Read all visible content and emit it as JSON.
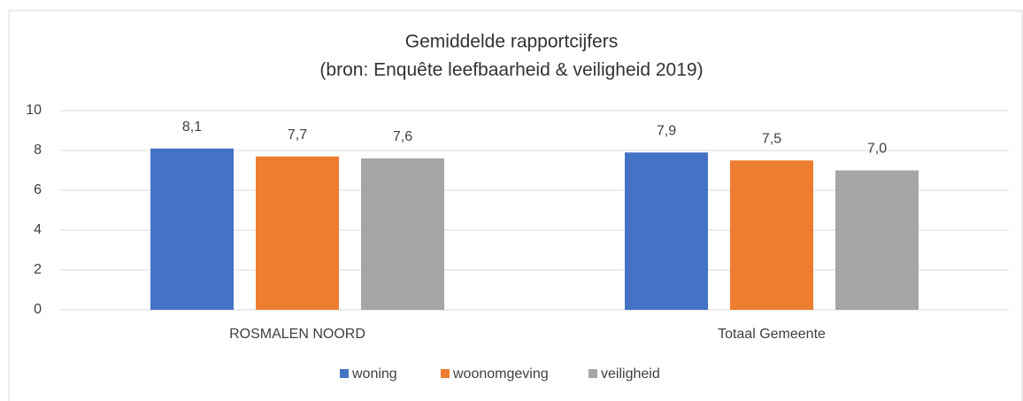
{
  "chart_data": {
    "type": "bar",
    "title": "Gemiddelde rapportcijfers",
    "subtitle": "(bron: Enquête leefbaarheid & veiligheid 2019)",
    "categories": [
      "ROSMALEN NOORD",
      "Totaal Gemeente"
    ],
    "series": [
      {
        "name": "woning",
        "color": "#4472c4",
        "values": [
          8.1,
          7.9
        ],
        "value_labels": [
          "8,1",
          "7,9"
        ]
      },
      {
        "name": "woonomgeving",
        "color": "#ed7d31",
        "values": [
          7.7,
          7.5
        ],
        "value_labels": [
          "7,7",
          "7,5"
        ]
      },
      {
        "name": "veiligheid",
        "color": "#a5a5a5",
        "values": [
          7.6,
          7.0
        ],
        "value_labels": [
          "7,6",
          "7,0"
        ]
      }
    ],
    "ylim": [
      0,
      10
    ],
    "yticks": [
      0,
      2,
      4,
      6,
      8,
      10
    ],
    "grid": true,
    "legend": "bottom"
  }
}
